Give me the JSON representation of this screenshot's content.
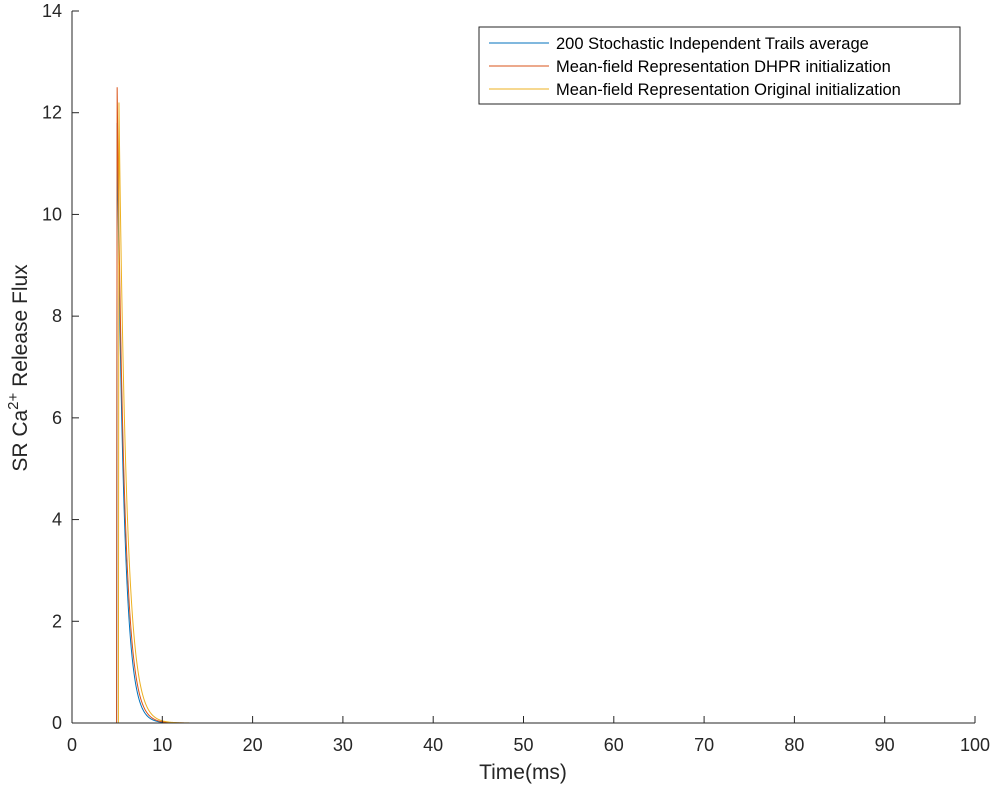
{
  "chart_data": {
    "type": "line",
    "title": "",
    "xlabel": "Time(ms)",
    "ylabel": {
      "prefix": "SR Ca",
      "superscript": "2+",
      "suffix": " Release Flux"
    },
    "xlim": [
      0,
      100
    ],
    "ylim": [
      0,
      14
    ],
    "xticks": [
      0,
      10,
      20,
      30,
      40,
      50,
      60,
      70,
      80,
      90,
      100
    ],
    "yticks": [
      0,
      2,
      4,
      6,
      8,
      10,
      12,
      14
    ],
    "grid": false,
    "legend_position": "top-right",
    "series": [
      {
        "name": "200 Stochastic Independent Trails average",
        "color": "#0072BD",
        "peak_time": 5.0,
        "peak_value": 11.8,
        "decay_tau": 0.75,
        "end_time": 34.5
      },
      {
        "name": "Mean-field Representation DHPR initialization",
        "color": "#D95319",
        "peak_time": 5.0,
        "peak_value": 12.5,
        "decay_tau": 0.8,
        "end_time": 100
      },
      {
        "name": "Mean-field Representation Original initialization",
        "color": "#EDB120",
        "peak_time": 5.2,
        "peak_value": 12.2,
        "decay_tau": 0.85,
        "end_time": 100
      }
    ]
  }
}
